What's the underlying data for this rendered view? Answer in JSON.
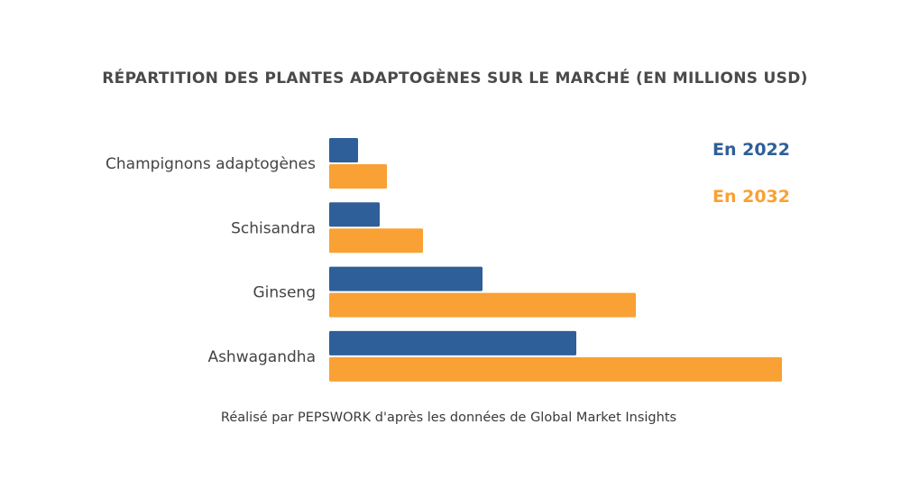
{
  "chart_data": {
    "type": "bar",
    "orientation": "horizontal",
    "title": "RÉPARTITION DES PLANTES ADAPTOGÈNES SUR LE MARCHÉ (EN MILLIONS USD)",
    "categories": [
      "Champignons adaptogènes",
      "Schisandra",
      "Ginseng",
      "Ashwagandha"
    ],
    "series": [
      {
        "name": "En 2022",
        "color": "#2e5f98",
        "values": [
          32,
          56,
          170,
          274
        ]
      },
      {
        "name": "En 2032",
        "color": "#f9a134",
        "values": [
          64,
          104,
          340,
          502
        ]
      }
    ],
    "xlim": [
      0,
      510
    ],
    "value_note": "relative values estimated from bar lengths; no axis shown",
    "grid": false,
    "legend_position": "top-right",
    "source": "Réalisé par PEPSWORK d'après les données de Global Market Insights"
  }
}
